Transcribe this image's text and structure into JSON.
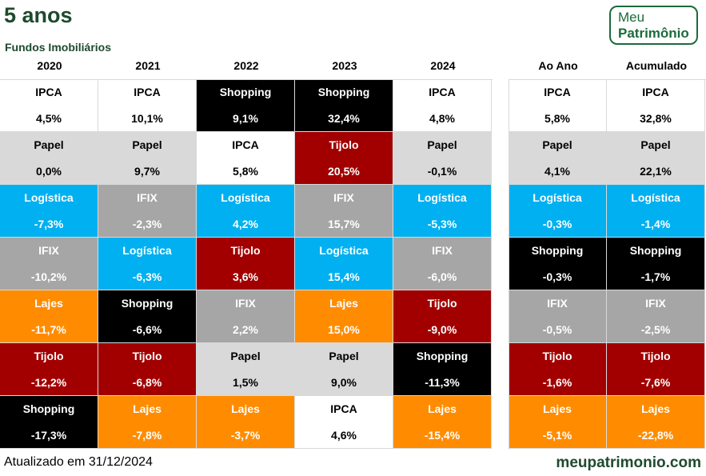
{
  "header": {
    "title": "5 anos",
    "subtitle": "Fundos Imobiliários"
  },
  "logo": {
    "line1": "Meu",
    "line2": "Patrimônio"
  },
  "footer": {
    "updated": "Atualizado em 31/12/2024",
    "site": "meupatrimonio.com"
  },
  "colors": {
    "IPCA": {
      "bg": "#ffffff",
      "fg": "#000000"
    },
    "Papel": {
      "bg": "#d9d9d9",
      "fg": "#000000"
    },
    "Logística": {
      "bg": "#00b0f0",
      "fg": "#ffffff"
    },
    "IFIX": {
      "bg": "#a6a6a6",
      "fg": "#ffffff"
    },
    "Lajes": {
      "bg": "#ff8c00",
      "fg": "#ffffff"
    },
    "Tijolo": {
      "bg": "#a20000",
      "fg": "#ffffff"
    },
    "Shopping": {
      "bg": "#000000",
      "fg": "#ffffff"
    }
  },
  "chart_data": {
    "type": "table",
    "title": "5 anos",
    "subtitle": "Fundos Imobiliários",
    "columns": [
      {
        "header": "2020",
        "cells": [
          {
            "name": "IPCA",
            "value": "4,5%"
          },
          {
            "name": "Papel",
            "value": "0,0%"
          },
          {
            "name": "Logística",
            "value": "-7,3%"
          },
          {
            "name": "IFIX",
            "value": "-10,2%"
          },
          {
            "name": "Lajes",
            "value": "-11,7%"
          },
          {
            "name": "Tijolo",
            "value": "-12,2%"
          },
          {
            "name": "Shopping",
            "value": "-17,3%"
          }
        ]
      },
      {
        "header": "2021",
        "cells": [
          {
            "name": "IPCA",
            "value": "10,1%"
          },
          {
            "name": "Papel",
            "value": "9,7%"
          },
          {
            "name": "IFIX",
            "value": "-2,3%"
          },
          {
            "name": "Logística",
            "value": "-6,3%"
          },
          {
            "name": "Shopping",
            "value": "-6,6%"
          },
          {
            "name": "Tijolo",
            "value": "-6,8%"
          },
          {
            "name": "Lajes",
            "value": "-7,8%"
          }
        ]
      },
      {
        "header": "2022",
        "cells": [
          {
            "name": "Shopping",
            "value": "9,1%"
          },
          {
            "name": "IPCA",
            "value": "5,8%"
          },
          {
            "name": "Logística",
            "value": "4,2%"
          },
          {
            "name": "Tijolo",
            "value": "3,6%"
          },
          {
            "name": "IFIX",
            "value": "2,2%"
          },
          {
            "name": "Papel",
            "value": "1,5%"
          },
          {
            "name": "Lajes",
            "value": "-3,7%"
          }
        ]
      },
      {
        "header": "2023",
        "cells": [
          {
            "name": "Shopping",
            "value": "32,4%"
          },
          {
            "name": "Tijolo",
            "value": "20,5%"
          },
          {
            "name": "IFIX",
            "value": "15,7%"
          },
          {
            "name": "Logística",
            "value": "15,4%"
          },
          {
            "name": "Lajes",
            "value": "15,0%"
          },
          {
            "name": "Papel",
            "value": "9,0%"
          },
          {
            "name": "IPCA",
            "value": "4,6%"
          }
        ]
      },
      {
        "header": "2024",
        "cells": [
          {
            "name": "IPCA",
            "value": "4,8%"
          },
          {
            "name": "Papel",
            "value": "-0,1%"
          },
          {
            "name": "Logística",
            "value": "-5,3%"
          },
          {
            "name": "IFIX",
            "value": "-6,0%"
          },
          {
            "name": "Tijolo",
            "value": "-9,0%"
          },
          {
            "name": "Shopping",
            "value": "-11,3%"
          },
          {
            "name": "Lajes",
            "value": "-15,4%"
          }
        ]
      },
      {
        "header": "Ao Ano",
        "cells": [
          {
            "name": "IPCA",
            "value": "5,8%"
          },
          {
            "name": "Papel",
            "value": "4,1%"
          },
          {
            "name": "Logística",
            "value": "-0,3%"
          },
          {
            "name": "Shopping",
            "value": "-0,3%"
          },
          {
            "name": "IFIX",
            "value": "-0,5%"
          },
          {
            "name": "Tijolo",
            "value": "-1,6%"
          },
          {
            "name": "Lajes",
            "value": "-5,1%"
          }
        ]
      },
      {
        "header": "Acumulado",
        "cells": [
          {
            "name": "IPCA",
            "value": "32,8%"
          },
          {
            "name": "Papel",
            "value": "22,1%"
          },
          {
            "name": "Logística",
            "value": "-1,4%"
          },
          {
            "name": "Shopping",
            "value": "-1,7%"
          },
          {
            "name": "IFIX",
            "value": "-2,5%"
          },
          {
            "name": "Tijolo",
            "value": "-7,6%"
          },
          {
            "name": "Lajes",
            "value": "-22,8%"
          }
        ]
      }
    ]
  }
}
